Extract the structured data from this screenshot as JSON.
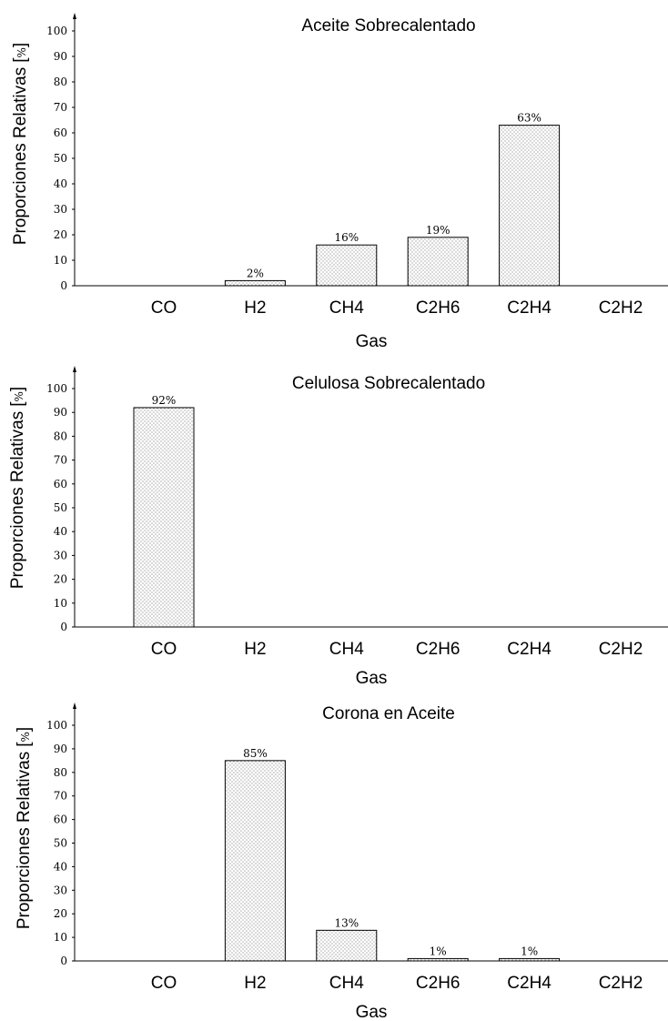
{
  "chart_data": [
    {
      "type": "bar",
      "title": "Aceite Sobrecalentado",
      "xlabel": "Gas",
      "ylabel": "Proporciones Relativas",
      "yunit": "%",
      "categories": [
        "CO",
        "H2",
        "CH4",
        "C2H6",
        "C2H4",
        "C2H2"
      ],
      "values": [
        0,
        2,
        16,
        19,
        63,
        0
      ],
      "data_labels": [
        "",
        "2%",
        "16%",
        "19%",
        "63%",
        ""
      ],
      "ylim": [
        0,
        100
      ],
      "yticks": [
        0,
        10,
        20,
        30,
        40,
        50,
        60,
        70,
        80,
        90,
        100
      ],
      "grid": false,
      "bar_fill": "dotted"
    },
    {
      "type": "bar",
      "title": "Celulosa Sobrecalentado",
      "xlabel": "Gas",
      "ylabel": "Proporciones Relativas",
      "yunit": "%",
      "categories": [
        "CO",
        "H2",
        "CH4",
        "C2H6",
        "C2H4",
        "C2H2"
      ],
      "values": [
        92,
        0,
        0,
        0,
        0,
        0
      ],
      "data_labels": [
        "92%",
        "",
        "",
        "",
        "",
        ""
      ],
      "ylim": [
        0,
        100
      ],
      "yticks": [
        0,
        10,
        20,
        30,
        40,
        50,
        60,
        70,
        80,
        90,
        100
      ],
      "grid": false,
      "bar_fill": "dotted"
    },
    {
      "type": "bar",
      "title": "Corona en Aceite",
      "xlabel": "Gas",
      "ylabel": "Proporciones Relativas",
      "yunit": "%",
      "categories": [
        "CO",
        "H2",
        "CH4",
        "C2H6",
        "C2H4",
        "C2H2"
      ],
      "values": [
        0,
        85,
        13,
        1,
        1,
        0
      ],
      "data_labels": [
        "",
        "85%",
        "13%",
        "1%",
        "1%",
        ""
      ],
      "ylim": [
        0,
        100
      ],
      "yticks": [
        0,
        10,
        20,
        30,
        40,
        50,
        60,
        70,
        80,
        90,
        100
      ],
      "grid": false,
      "bar_fill": "dotted"
    }
  ]
}
